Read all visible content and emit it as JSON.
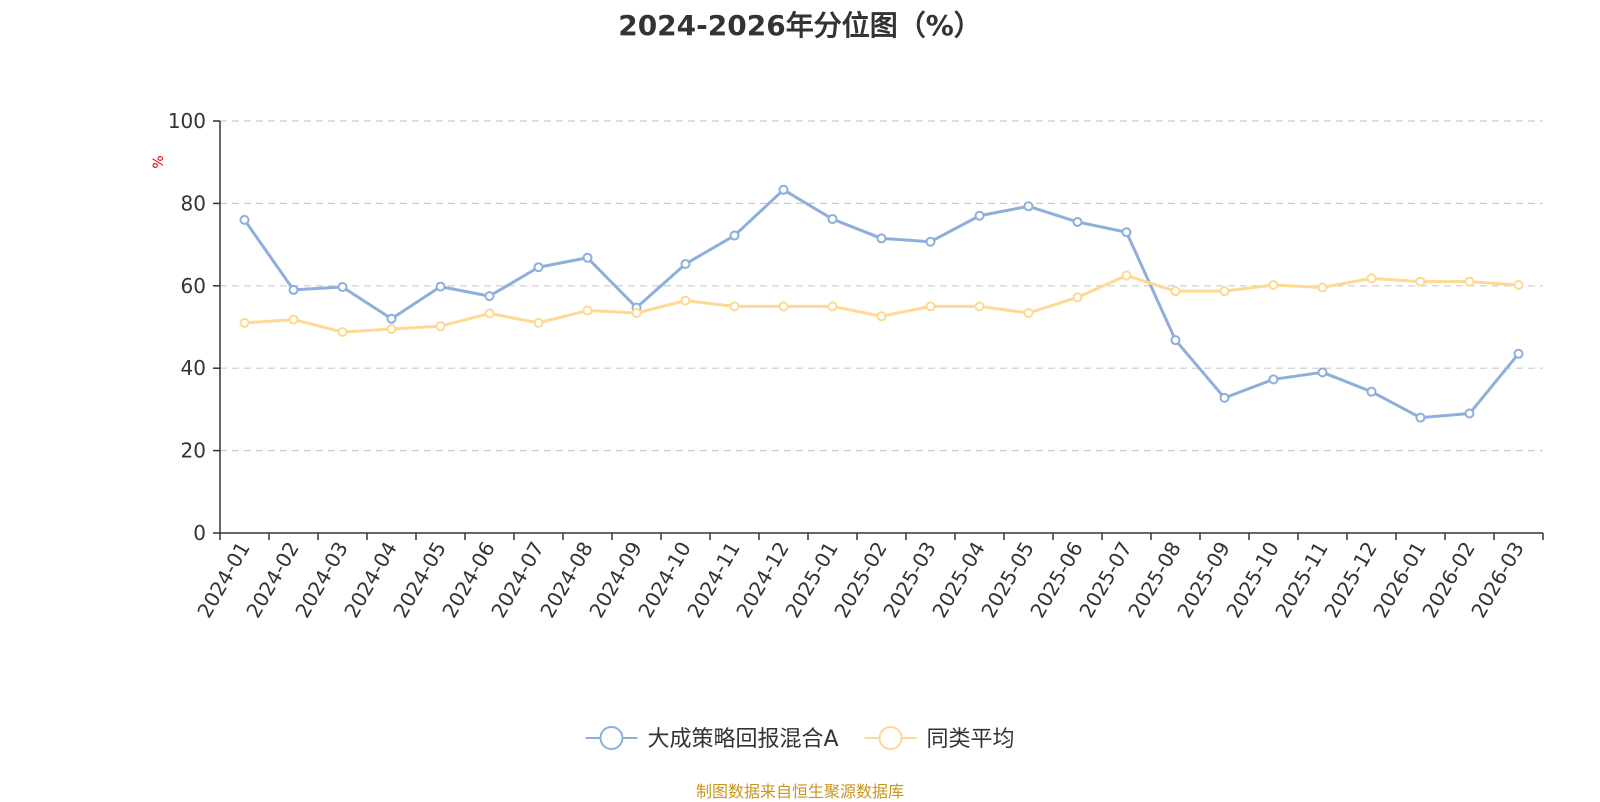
{
  "title": "2024-2026年分位图（%）",
  "source_note": "制图数据来自恒生聚源数据库",
  "chart_data": {
    "type": "line",
    "title": "2024-2026年分位图（%）",
    "ylabel": "%",
    "xlabel": "",
    "ylim": [
      0,
      100
    ],
    "yticks": [
      0,
      20,
      40,
      60,
      80,
      100
    ],
    "grid": true,
    "legend_position": "bottom-center",
    "categories": [
      "2024-01",
      "2024-02",
      "2024-03",
      "2024-04",
      "2024-05",
      "2024-06",
      "2024-07",
      "2024-08",
      "2024-09",
      "2024-10",
      "2024-11",
      "2024-12",
      "2025-01",
      "2025-02",
      "2025-03",
      "2025-04",
      "2025-05",
      "2025-06",
      "2025-07",
      "2025-08",
      "2025-09",
      "2025-10",
      "2025-11",
      "2025-12",
      "2026-01",
      "2026-02",
      "2026-03"
    ],
    "series": [
      {
        "name": "大成策略回报混合A",
        "color": "#8eaedb",
        "values": [
          76,
          59,
          59.7,
          52,
          59.8,
          57.5,
          64.5,
          66.8,
          54.7,
          65.3,
          72.2,
          83.3,
          76.2,
          71.5,
          70.7,
          77,
          79.3,
          75.5,
          73,
          46.8,
          32.8,
          37.3,
          39,
          34.3,
          28,
          29,
          43.5
        ]
      },
      {
        "name": "同类平均",
        "color": "#fdd993",
        "values": [
          51,
          51.8,
          48.8,
          49.5,
          50.2,
          53.3,
          51,
          54,
          53.4,
          56.4,
          55,
          55,
          55,
          52.6,
          55,
          55,
          53.4,
          57.2,
          62.5,
          58.7,
          58.7,
          60.2,
          59.6,
          61.8,
          61,
          61,
          60.2
        ]
      }
    ]
  }
}
